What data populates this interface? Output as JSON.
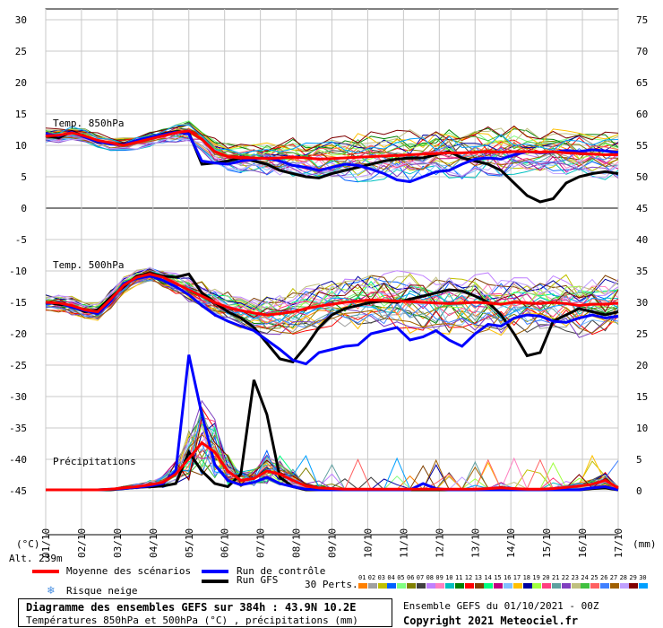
{
  "chart_data": {
    "type": "line",
    "title": "Diagramme des ensembles GEFS sur 384h : 43.9N 10.2E",
    "subtitle": "Températures 850hPa et 500hPa (°C) , précipitations (mm)",
    "left_axis": {
      "label": "(°C)",
      "ticks": [
        "30",
        "25",
        "20",
        "15",
        "10",
        "5",
        "0",
        "-5",
        "-10",
        "-15",
        "-20",
        "-25",
        "-30",
        "-35",
        "-40",
        "-45"
      ],
      "range": [
        -45,
        30
      ]
    },
    "right_axis": {
      "label": "(mm)",
      "ticks": [
        "75",
        "70",
        "65",
        "60",
        "55",
        "50",
        "45",
        "40",
        "35",
        "30",
        "25",
        "20",
        "15",
        "10",
        "5",
        "0"
      ]
    },
    "x_ticks": [
      "01/10",
      "02/10",
      "03/10",
      "04/10",
      "05/10",
      "06/10",
      "07/10",
      "08/10",
      "09/10",
      "10/10",
      "11/10",
      "12/10",
      "13/10",
      "14/10",
      "15/10",
      "16/10",
      "17/10"
    ],
    "panel_labels": {
      "t850": "Temp. 850hPa",
      "t500": "Temp. 500hPa",
      "precip": "Précipitations"
    },
    "altitude": "Alt. 239m",
    "series": [
      {
        "name": "Moyenne des scénarios",
        "color": "#ff0000",
        "t850": [
          11.5,
          11.6,
          12.0,
          11.5,
          10.8,
          10.4,
          10.0,
          10.5,
          11.0,
          11.5,
          12.0,
          12.3,
          11.0,
          9.0,
          8.2,
          8.0,
          8.0,
          7.9,
          8.0,
          8.1,
          8.0,
          7.8,
          7.9,
          8.0,
          8.1,
          8.2,
          8.3,
          8.4,
          8.5,
          8.6,
          8.7,
          8.8,
          8.8,
          8.9,
          9.0,
          8.9,
          9.0,
          9.0,
          8.9,
          9.0,
          8.8,
          8.7,
          8.6,
          8.5,
          8.5
        ],
        "t500": [
          -15.0,
          -15.1,
          -15.5,
          -16.2,
          -16.5,
          -14.5,
          -12.3,
          -11.0,
          -10.5,
          -11.0,
          -12.0,
          -13.0,
          -14.0,
          -15.0,
          -15.8,
          -16.3,
          -16.7,
          -17.0,
          -16.8,
          -16.5,
          -16.0,
          -15.6,
          -15.3,
          -15.0,
          -14.8,
          -14.6,
          -14.7,
          -14.8,
          -14.9,
          -15.0,
          -15.1,
          -15.2,
          -15.1,
          -15.0,
          -15.1,
          -15.3,
          -15.0,
          -15.1,
          -15.2,
          -15.0,
          -15.2,
          -15.5,
          -15.3,
          -15.3,
          -15.1
        ],
        "precip": [
          0,
          0,
          0,
          0,
          0,
          0.1,
          0.3,
          0.5,
          0.8,
          1.2,
          2.5,
          5.0,
          7.5,
          6.0,
          3.0,
          1.5,
          1.8,
          3.0,
          2.5,
          1.5,
          0.6,
          0.3,
          0.2,
          0.1,
          0.1,
          0.1,
          0.1,
          0.1,
          0.1,
          0.1,
          0.1,
          0.1,
          0.1,
          0.1,
          0.2,
          0.3,
          0.2,
          0.1,
          0.1,
          0.2,
          0.4,
          0.6,
          0.9,
          1.5,
          0.3
        ]
      },
      {
        "name": "Run de contrôle",
        "color": "#0000ff",
        "t850": [
          11.8,
          11.5,
          12.1,
          11.3,
          10.6,
          10.2,
          10.1,
          10.8,
          11.3,
          11.7,
          12.1,
          11.8,
          7.5,
          7.2,
          7.0,
          7.5,
          7.8,
          8.0,
          7.5,
          6.8,
          6.5,
          6.0,
          6.5,
          7.0,
          6.8,
          6.2,
          5.5,
          4.5,
          4.2,
          5.0,
          5.8,
          6.0,
          7.0,
          7.8,
          8.0,
          7.8,
          8.5,
          9.0,
          8.8,
          8.9,
          9.2,
          9.0,
          9.3,
          9.1,
          8.9
        ],
        "t500": [
          -15.2,
          -15.0,
          -15.8,
          -16.3,
          -16.8,
          -14.8,
          -12.0,
          -11.2,
          -10.8,
          -11.5,
          -12.5,
          -13.8,
          -15.5,
          -17.0,
          -18.0,
          -18.8,
          -19.5,
          -21.0,
          -22.5,
          -24.2,
          -24.8,
          -23.0,
          -22.5,
          -22.0,
          -21.8,
          -20.0,
          -19.5,
          -19.0,
          -21.0,
          -20.5,
          -19.5,
          -21.0,
          -22.0,
          -20.0,
          -18.5,
          -18.8,
          -17.5,
          -17.0,
          -17.2,
          -18.0,
          -18.2,
          -17.5,
          -17.0,
          -17.5,
          -17.2
        ],
        "precip": [
          0,
          0,
          0,
          0,
          0,
          0.1,
          0.2,
          0.4,
          0.6,
          1.0,
          3.0,
          21.5,
          12.0,
          4.0,
          1.5,
          0.8,
          1.2,
          2.0,
          1.0,
          0.5,
          0.1,
          0,
          0,
          0,
          0,
          0,
          0,
          0,
          0,
          1.0,
          0.2,
          0,
          0,
          0,
          0,
          0,
          0,
          0,
          0,
          0,
          0,
          0,
          0.3,
          0.5,
          0
        ]
      },
      {
        "name": "Run GFS",
        "color": "#000000",
        "t850": [
          11.5,
          11.2,
          12.2,
          11.4,
          10.5,
          10.3,
          10.2,
          10.6,
          11.2,
          11.8,
          12.2,
          12.0,
          7.0,
          7.2,
          7.5,
          8.0,
          7.5,
          7.0,
          6.0,
          5.5,
          5.0,
          4.8,
          5.5,
          6.0,
          6.5,
          7.0,
          7.5,
          7.8,
          8.0,
          8.0,
          8.5,
          9.0,
          8.0,
          7.5,
          7.0,
          6.0,
          4.0,
          2.0,
          1.0,
          1.5,
          4.0,
          5.0,
          5.5,
          5.8,
          5.5
        ],
        "t500": [
          -15.0,
          -15.3,
          -15.6,
          -16.5,
          -16.2,
          -14.2,
          -12.5,
          -10.8,
          -10.4,
          -10.8,
          -11.0,
          -10.5,
          -13.5,
          -15.0,
          -16.5,
          -17.5,
          -19.0,
          -21.5,
          -24.0,
          -24.5,
          -22.0,
          -19.0,
          -17.0,
          -16.0,
          -15.5,
          -15.0,
          -14.8,
          -15.0,
          -14.5,
          -14.0,
          -13.5,
          -13.0,
          -13.2,
          -14.0,
          -15.0,
          -17.0,
          -20.0,
          -23.5,
          -23.0,
          -18.0,
          -17.0,
          -16.0,
          -16.5,
          -17.0,
          -16.5
        ],
        "precip": [
          0,
          0,
          0,
          0,
          0,
          0,
          0.2,
          0.4,
          0.5,
          0.6,
          1.0,
          6.0,
          3.0,
          1.0,
          0.5,
          2.5,
          17.5,
          12.0,
          2.0,
          0.5,
          0,
          0,
          0,
          0,
          0,
          0,
          0,
          0,
          0,
          0,
          0,
          0,
          0,
          0,
          0,
          0,
          0,
          0,
          0,
          0,
          0,
          0,
          0.2,
          0.3,
          0
        ]
      }
    ],
    "ensemble_note": "30 perturbations shown as thin coloured lines"
  },
  "legend": {
    "mean_label": "Moyenne des scénarios",
    "control_label": "Run de contrôle",
    "gfs_label": "Run GFS",
    "snow_label": "Risque neige",
    "snow_icon": "snowflake-icon",
    "perts_label": "30 Perts.",
    "pert_numbers": [
      "01",
      "02",
      "03",
      "04",
      "05",
      "06",
      "07",
      "08",
      "09",
      "10",
      "11",
      "12",
      "13",
      "14",
      "15",
      "16",
      "17",
      "18",
      "19",
      "20",
      "21",
      "22",
      "23",
      "24",
      "25",
      "26",
      "27",
      "28",
      "29",
      "30"
    ],
    "pert_colors": [
      "#ff8000",
      "#a0a0a0",
      "#c0c000",
      "#0060ff",
      "#80ff80",
      "#808000",
      "#404040",
      "#c080ff",
      "#ff80c0",
      "#00c0c0",
      "#008000",
      "#ff0000",
      "#804000",
      "#00ff80",
      "#c00080",
      "#80c0ff",
      "#ffc000",
      "#0000a0",
      "#a0ff40",
      "#ff4080",
      "#60a0a0",
      "#8040c0",
      "#c0c080",
      "#40c040",
      "#ff6060",
      "#4080ff",
      "#a06000",
      "#c0a0ff",
      "#800000",
      "#00a0ff"
    ]
  },
  "footer": {
    "title": "Diagramme des ensembles GEFS sur 384h : 43.9N 10.2E",
    "subtitle": "Températures 850hPa et 500hPa (°C) , précipitations (mm)",
    "run_info": "Ensemble GEFS du 01/10/2021 - 00Z",
    "copyright": "Copyright 2021 Meteociel.fr"
  }
}
